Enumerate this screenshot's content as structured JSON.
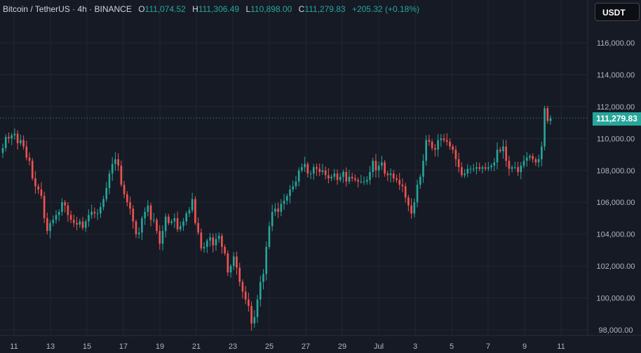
{
  "legend": {
    "symbol": "Bitcoin / TetherUS · 4h · BINANCE",
    "open_key": "O",
    "open": "111,074.52",
    "high_key": "H",
    "high": "111,306.49",
    "low_key": "L",
    "low": "110,898.00",
    "close_key": "C",
    "close": "111,279.83",
    "change": "+205.32 (+0.18%)"
  },
  "currency_button": "USDT",
  "last_price_label": "111,279.83",
  "colors": {
    "up": "#26a69a",
    "down": "#ef5350",
    "background": "#161a25",
    "grid": "#232732",
    "axis_text": "#b2b5be"
  },
  "chart_data": {
    "type": "candlestick",
    "ylim": [
      97800,
      117500
    ],
    "y_ticks": [
      {
        "value": 98000,
        "label": "98,000.00"
      },
      {
        "value": 100000,
        "label": "100,000.00"
      },
      {
        "value": 102000,
        "label": "102,000.00"
      },
      {
        "value": 104000,
        "label": "104,000.00"
      },
      {
        "value": 106000,
        "label": "106,000.00"
      },
      {
        "value": 108000,
        "label": "108,000.00"
      },
      {
        "value": 110000,
        "label": "110,000.00"
      },
      {
        "value": 112000,
        "label": "112,000.00"
      },
      {
        "value": 114000,
        "label": "114,000.00"
      },
      {
        "value": 116000,
        "label": "116,000.00"
      }
    ],
    "x_ticks": [
      "11",
      "13",
      "15",
      "17",
      "19",
      "21",
      "23",
      "25",
      "27",
      "29",
      "Jul",
      "3",
      "5",
      "7",
      "9",
      "11"
    ],
    "x_start": "Jun 10 12:00",
    "interval": "4h",
    "last_price": 111279.83,
    "closes": [
      109400,
      110100,
      110000,
      110200,
      110300,
      109700,
      109900,
      109500,
      108800,
      108600,
      107500,
      107000,
      106800,
      106400,
      105000,
      104200,
      104700,
      104900,
      105200,
      105400,
      106000,
      105800,
      105200,
      104900,
      104700,
      104600,
      104800,
      104400,
      104800,
      105200,
      105400,
      105300,
      105300,
      105700,
      106200,
      106900,
      107800,
      108400,
      108700,
      108300,
      107100,
      106500,
      106000,
      105600,
      104800,
      104000,
      104100,
      105000,
      105400,
      105800,
      104900,
      104900,
      104200,
      103400,
      104200,
      105100,
      104700,
      104800,
      105000,
      104300,
      104500,
      104800,
      105300,
      105500,
      106200,
      104700,
      104100,
      103100,
      103200,
      103600,
      103800,
      103300,
      103700,
      103900,
      103200,
      102800,
      101600,
      102000,
      102600,
      101900,
      101000,
      100400,
      99900,
      99500,
      98400,
      98800,
      99900,
      101000,
      101500,
      103200,
      104500,
      105400,
      105600,
      105400,
      105900,
      106100,
      106400,
      106800,
      107000,
      107300,
      108000,
      108200,
      108400,
      107800,
      107800,
      108200,
      108100,
      107900,
      108000,
      107700,
      107500,
      107600,
      107800,
      107400,
      107600,
      107900,
      107300,
      107600,
      107500,
      107400,
      107300,
      107300,
      107300,
      107400,
      107900,
      108600,
      108000,
      108300,
      108500,
      107800,
      107700,
      107800,
      107500,
      107400,
      107100,
      107000,
      106300,
      105800,
      105300,
      106000,
      107100,
      107600,
      108600,
      109900,
      109800,
      109400,
      109300,
      109900,
      110000,
      109900,
      109800,
      109500,
      109300,
      108700,
      108200,
      107700,
      107800,
      108100,
      108100,
      108100,
      108200,
      108100,
      108200,
      108100,
      108200,
      108300,
      108500,
      109300,
      109200,
      109500,
      108600,
      108100,
      108200,
      108200,
      107900,
      108300,
      108600,
      108800,
      108900,
      108700,
      108500,
      108700,
      109500,
      111900,
      111100,
      111280
    ]
  }
}
